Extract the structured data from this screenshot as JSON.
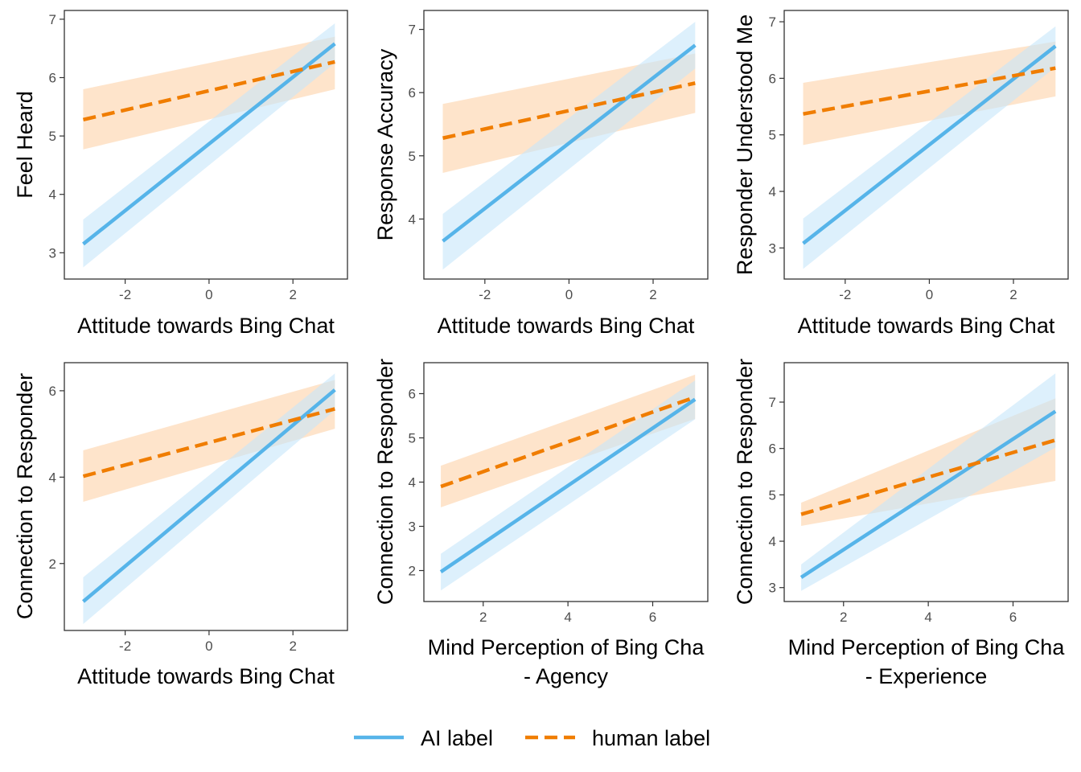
{
  "colors": {
    "ai": "#56B4E9",
    "human": "#F07D00",
    "ai_band": "#C6E6FA",
    "human_band": "#FDD9B5"
  },
  "legend": {
    "position": "bottom",
    "items": [
      {
        "label": "AI label",
        "color": "#56B4E9",
        "dash": false
      },
      {
        "label": "human label",
        "color": "#F07D00",
        "dash": true
      }
    ]
  },
  "chart_data": [
    {
      "type": "line",
      "xlabel": [
        "Attitude towards Bing Chat"
      ],
      "ylabel": "Feel Heard",
      "xlim": [
        -3.45,
        3.3
      ],
      "ylim": [
        2.55,
        7.15
      ],
      "xticks": [
        -2,
        0,
        2
      ],
      "yticks": [
        3,
        4,
        5,
        6,
        7
      ],
      "grid": false,
      "series": [
        {
          "name": "AI label",
          "x": [
            -3,
            3
          ],
          "y": [
            3.15,
            6.58
          ],
          "lower": [
            2.75,
            6.25
          ],
          "upper": [
            3.57,
            6.93
          ]
        },
        {
          "name": "human label",
          "x": [
            -3,
            3
          ],
          "y": [
            5.28,
            6.27
          ],
          "lower": [
            4.77,
            5.8
          ],
          "upper": [
            5.8,
            6.7
          ]
        }
      ]
    },
    {
      "type": "line",
      "xlabel": [
        "Attitude towards Bing Chat"
      ],
      "ylabel": "Response Accuracy",
      "xlim": [
        -3.45,
        3.3
      ],
      "ylim": [
        3.05,
        7.3
      ],
      "xticks": [
        -2,
        0,
        2
      ],
      "yticks": [
        4,
        5,
        6,
        7
      ],
      "grid": false,
      "series": [
        {
          "name": "AI label",
          "x": [
            -3,
            3
          ],
          "y": [
            3.65,
            6.75
          ],
          "lower": [
            3.2,
            6.38
          ],
          "upper": [
            4.08,
            7.12
          ]
        },
        {
          "name": "human label",
          "x": [
            -3,
            3
          ],
          "y": [
            5.28,
            6.15
          ],
          "lower": [
            4.73,
            5.68
          ],
          "upper": [
            5.82,
            6.62
          ]
        }
      ]
    },
    {
      "type": "line",
      "xlabel": [
        "Attitude towards Bing Chat"
      ],
      "ylabel": "Responder Understood Me",
      "xlim": [
        -3.45,
        3.3
      ],
      "ylim": [
        2.45,
        7.2
      ],
      "xticks": [
        -2,
        0,
        2
      ],
      "yticks": [
        3,
        4,
        5,
        6,
        7
      ],
      "grid": false,
      "series": [
        {
          "name": "AI label",
          "x": [
            -3,
            3
          ],
          "y": [
            3.08,
            6.57
          ],
          "lower": [
            2.63,
            6.2
          ],
          "upper": [
            3.52,
            6.92
          ]
        },
        {
          "name": "human label",
          "x": [
            -3,
            3
          ],
          "y": [
            5.37,
            6.18
          ],
          "lower": [
            4.82,
            5.68
          ],
          "upper": [
            5.92,
            6.65
          ]
        }
      ]
    },
    {
      "type": "line",
      "xlabel": [
        "Attitude towards Bing Chat"
      ],
      "ylabel": "Connection to Responder",
      "xlim": [
        -3.45,
        3.3
      ],
      "ylim": [
        0.45,
        6.65
      ],
      "xticks": [
        -2,
        0,
        2
      ],
      "yticks": [
        2,
        4,
        6
      ],
      "grid": false,
      "series": [
        {
          "name": "AI label",
          "x": [
            -3,
            3
          ],
          "y": [
            1.12,
            6.02
          ],
          "lower": [
            0.6,
            5.55
          ],
          "upper": [
            1.68,
            6.4
          ]
        },
        {
          "name": "human label",
          "x": [
            -3,
            3
          ],
          "y": [
            4.02,
            5.58
          ],
          "lower": [
            3.43,
            5.12
          ],
          "upper": [
            4.62,
            6.25
          ]
        }
      ]
    },
    {
      "type": "line",
      "xlabel": [
        "Mind Perception of Bing Cha",
        "- Agency"
      ],
      "ylabel": "Connection to Responder",
      "xlim": [
        0.6,
        7.3
      ],
      "ylim": [
        1.3,
        6.7
      ],
      "xticks": [
        2,
        4,
        6
      ],
      "yticks": [
        2,
        3,
        4,
        5,
        6
      ],
      "grid": false,
      "series": [
        {
          "name": "AI label",
          "x": [
            1,
            7
          ],
          "y": [
            1.97,
            5.87
          ],
          "lower": [
            1.55,
            5.42
          ],
          "upper": [
            2.38,
            6.3
          ]
        },
        {
          "name": "human label",
          "x": [
            1,
            7
          ],
          "y": [
            3.9,
            5.92
          ],
          "lower": [
            3.43,
            5.43
          ],
          "upper": [
            4.37,
            6.43
          ]
        }
      ]
    },
    {
      "type": "line",
      "xlabel": [
        "Mind Perception of Bing Cha",
        "- Experience"
      ],
      "ylabel": "Connection to Responder",
      "xlim": [
        0.6,
        7.3
      ],
      "ylim": [
        2.7,
        7.85
      ],
      "xticks": [
        2,
        4,
        6
      ],
      "yticks": [
        3,
        4,
        5,
        6,
        7
      ],
      "grid": false,
      "series": [
        {
          "name": "AI label",
          "x": [
            1,
            7
          ],
          "y": [
            3.22,
            6.8
          ],
          "lower": [
            2.93,
            6.02
          ],
          "upper": [
            3.5,
            7.62
          ]
        },
        {
          "name": "human label",
          "x": [
            1,
            7
          ],
          "y": [
            4.58,
            6.18
          ],
          "lower": [
            4.33,
            5.3
          ],
          "upper": [
            4.83,
            7.08
          ]
        }
      ]
    }
  ]
}
